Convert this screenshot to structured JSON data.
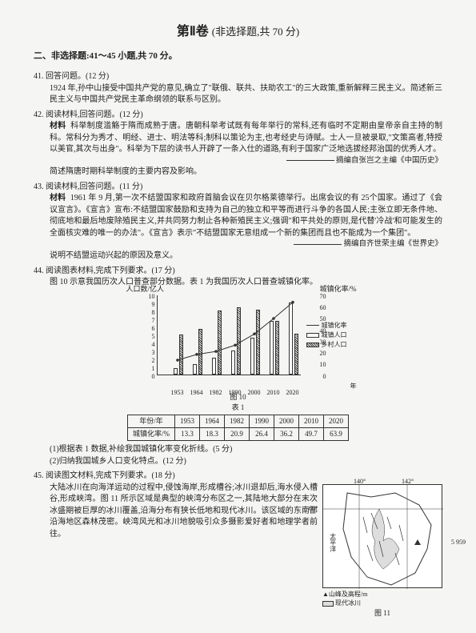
{
  "title_main": "第Ⅱ卷",
  "title_sub": "(非选择题,共 70 分)",
  "section_head": "二、非选择题:41～45 小题,共 70 分。",
  "q41": {
    "head": "41. 回答问题。(12 分)",
    "body": "1924 年,孙中山接受中国共产党的意见,确立了\"联俄、联共、扶助农工\"的三大政策,重新解释三民主义。简述新三民主义与中国共产党民主革命纲领的联系与区别。"
  },
  "q42": {
    "head": "42. 阅读材料,回答问题。(12 分)",
    "mat_label": "材料",
    "mat": "科举制度滥觞于隋而成熟于唐。唐朝科举考试既有每年举行的常科,还有临时不定期由皇帝亲自主持的制科。常科分为秀才、明经、进士、明法等科;制科以策论为主,也考经史与诗赋。士人一旦被录取,\"文策高者,特授以美官,其次与出身\"。科举为下层的读书人开辟了一条入仕的道路,有利于国家广泛地选拔经邦治国的优秀人才。",
    "src": "摘编自张岂之主编《中国历史》",
    "ask": "简述隋唐时期科举制度的主要内容及影响。"
  },
  "q43": {
    "head": "43. 阅读材料,回答问题。(11 分)",
    "mat_label": "材料",
    "mat": "1961 年 9 月,第一次不结盟国家和政府首脑会议在贝尔格莱德举行。出席会议的有 25个国家。通过了《会议宣言》。《宣言》宣布:不结盟国家鼓励和支持为自己的独立和平等而进行斗争的各国人民;主张立即无条件地、彻底地和最后地废除殖民主义,并共同努力制止各种新殖民主义;强调\"和平共处的原则,是代替'冷战'和可能发生的全面核灾难的唯一的办法\"。《宣言》表示\"不结盟国家无意组成一个新的集团而且也不能成为一个集团\"。",
    "src": "摘编自齐世荣主编《世界史》",
    "ask": "说明不结盟运动兴起的原因及意义。"
  },
  "q44": {
    "head": "44. 阅读图表材料,完成下列要求。(17 分)",
    "intro": "图 10 示意我国历次人口普查部分数据。表 1 为我国历次人口普查城镇化率。",
    "chart": {
      "type": "bar+line",
      "ylabel_left": "人口数/亿人",
      "ylabel_right": "城镇化率/%",
      "y_left_ticks": [
        0,
        1,
        2,
        3,
        4,
        5,
        6,
        7,
        8,
        9,
        10
      ],
      "y_right_ticks": [
        0,
        10,
        20,
        30,
        40,
        50,
        60,
        70
      ],
      "categories": [
        "1953",
        "1964",
        "1982",
        "1990",
        "2000",
        "2010",
        "2020"
      ],
      "xlabel": "年",
      "urban_pop": [
        0.8,
        1.3,
        2.1,
        3.0,
        4.6,
        6.7,
        9.0
      ],
      "rural_pop": [
        5.0,
        5.7,
        8.0,
        8.4,
        8.1,
        6.7,
        5.1
      ],
      "urban_rate": [
        13.3,
        18.3,
        20.9,
        26.4,
        36.2,
        49.7,
        63.9
      ],
      "bar_color_urban": "#ffffff",
      "bar_color_rural_pattern": "hatch",
      "border_color": "#333333",
      "grid_color": "#333333",
      "legend": {
        "line": "城镇化率",
        "urban": "城镇人口",
        "rural": "乡村人口"
      },
      "caption_fig": "图 10",
      "caption_tab": "表 1"
    },
    "table": {
      "header": [
        "年份/年",
        "1953",
        "1964",
        "1982",
        "1990",
        "2000",
        "2010",
        "2020"
      ],
      "row": [
        "城镇化率/%",
        "13.3",
        "18.3",
        "20.9",
        "26.4",
        "36.2",
        "49.7",
        "63.9"
      ]
    },
    "ask1": "(1)根据表 1 数据,补绘我国城镇化率变化折线。(5 分)",
    "ask2": "(2)归纳我国城乡人口变化特点。(12 分)"
  },
  "q45": {
    "head": "45. 阅读图文材料,完成下列要求。(18 分)",
    "body": "大陆冰川在向海洋运动的过程中,侵蚀海岸,形成槽谷;冰川退却后,海水侵入槽谷,形成峡湾。图 11 所示区域是典型的峡湾分布区之一,其陆地大部分在末次冰盛期被巨厚的冰川覆盖,沿海分布有狭长低地和现代冰川。该区域的东南部沿海地区森林茂密。峡湾风光和冰川地貌吸引众多摄影爱好者和地理学者前往。",
    "map": {
      "caption": "图 11",
      "lon_left": "140°",
      "lon_right": "142°",
      "lat": "60°",
      "peak": "5 959",
      "peak_label": "▲山峰及高程/m",
      "glacier_label": "现代冰川",
      "ocean": "太平洋",
      "border_color": "#333333",
      "bg": "#ffffff"
    }
  }
}
